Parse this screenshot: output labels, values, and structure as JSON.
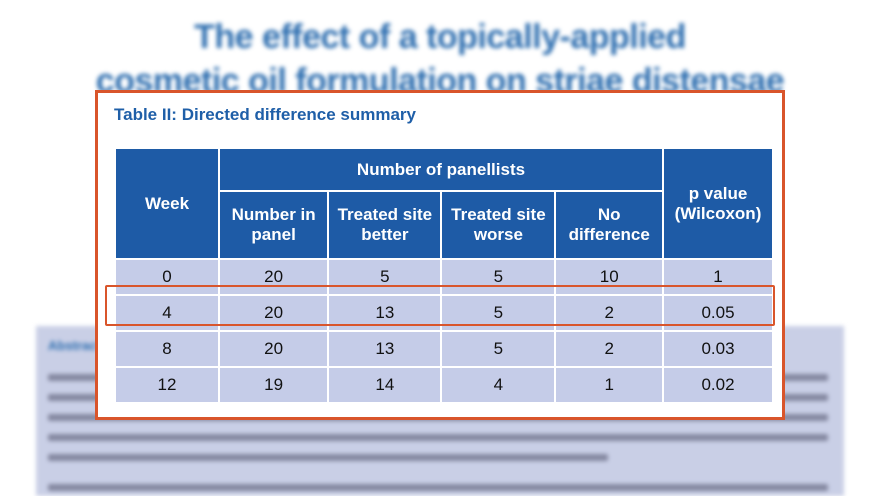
{
  "background": {
    "title_line1": "The effect of a topically-applied",
    "title_line2": "cosmetic oil formulation on striae distensae",
    "abstract_heading": "Abstract"
  },
  "table": {
    "title": "Table II: Directed difference summary",
    "headers": {
      "week": "Week",
      "group": "Number of panellists",
      "p_value": "p value (Wilcoxon)",
      "sub": [
        "Number in panel",
        "Treated site better",
        "Treated site worse",
        "No difference"
      ]
    },
    "rows": [
      [
        "0",
        "20",
        "5",
        "5",
        "10",
        "1"
      ],
      [
        "4",
        "20",
        "13",
        "5",
        "2",
        "0.05"
      ],
      [
        "8",
        "20",
        "13",
        "5",
        "2",
        "0.03"
      ],
      [
        "12",
        "19",
        "14",
        "4",
        "1",
        "0.02"
      ]
    ]
  },
  "colors": {
    "header_blue": "#1e5ba6",
    "row_fill": "#c5cce8",
    "title_blue": "#1f5fa8",
    "highlight_orange": "#d9552b"
  }
}
